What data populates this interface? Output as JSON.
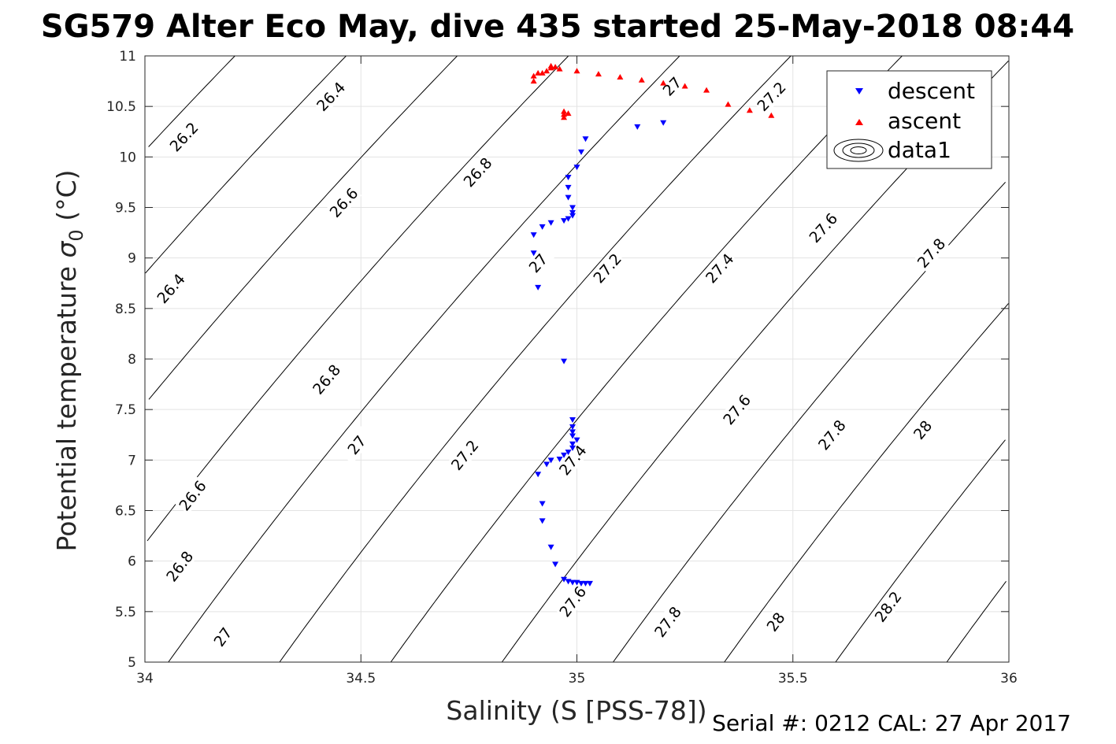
{
  "chart_data": {
    "type": "scatter",
    "title": "SG579 Alter Eco May, dive 435 started 25-May-2018 08:44",
    "xlabel": "Salinity (S [PSS-78])",
    "ylabel_main": "Potential temperature ",
    "ylabel_symbol": "σ",
    "ylabel_sub": "0",
    "ylabel_unit": " (°C)",
    "xlim": [
      34,
      36
    ],
    "ylim": [
      5,
      11
    ],
    "xticks": [
      34,
      34.5,
      35,
      35.5,
      36
    ],
    "xtick_labels": [
      "34",
      "34.5",
      "35",
      "35.5",
      "36"
    ],
    "yticks": [
      5,
      5.5,
      6,
      6.5,
      7,
      7.5,
      8,
      8.5,
      9,
      9.5,
      10,
      10.5,
      11
    ],
    "ytick_labels": [
      "5",
      "5.5",
      "6",
      "6.5",
      "7",
      "7.5",
      "8",
      "8.5",
      "9",
      "9.5",
      "10",
      "10.5",
      "11"
    ],
    "grid": true,
    "legend_position": "top-right",
    "legend": [
      "descent",
      "ascent",
      "data1"
    ],
    "footer": "Serial #: 0212  CAL: 27 Apr 2017",
    "contour_levels": [
      26.2,
      26.4,
      26.6,
      26.8,
      27,
      27.2,
      27.4,
      27.6,
      27.8,
      28,
      28.2
    ],
    "contour_labels": [
      {
        "text": "26.2",
        "s": 34.09,
        "t": 10.2
      },
      {
        "text": "26.4",
        "s": 34.43,
        "t": 10.6
      },
      {
        "text": "26.4",
        "s": 34.06,
        "t": 8.7
      },
      {
        "text": "26.6",
        "s": 34.46,
        "t": 9.55
      },
      {
        "text": "26.6",
        "s": 34.11,
        "t": 6.65
      },
      {
        "text": "26.8",
        "s": 34.77,
        "t": 9.85
      },
      {
        "text": "26.8",
        "s": 34.42,
        "t": 7.8
      },
      {
        "text": "26.8",
        "s": 34.08,
        "t": 5.95
      },
      {
        "text": "27",
        "s": 35.22,
        "t": 10.7
      },
      {
        "text": "27",
        "s": 34.91,
        "t": 8.95
      },
      {
        "text": "27",
        "s": 34.49,
        "t": 7.15
      },
      {
        "text": "27",
        "s": 34.18,
        "t": 5.25
      },
      {
        "text": "27.2",
        "s": 35.45,
        "t": 10.6
      },
      {
        "text": "27.2",
        "s": 35.07,
        "t": 8.9
      },
      {
        "text": "27.2",
        "s": 34.74,
        "t": 7.05
      },
      {
        "text": "27.4",
        "s": 35.33,
        "t": 8.9
      },
      {
        "text": "27.4",
        "s": 34.99,
        "t": 7.0
      },
      {
        "text": "27.6",
        "s": 35.57,
        "t": 9.3
      },
      {
        "text": "27.6",
        "s": 35.37,
        "t": 7.5
      },
      {
        "text": "27.6",
        "s": 34.99,
        "t": 5.6
      },
      {
        "text": "27.8",
        "s": 35.82,
        "t": 9.05
      },
      {
        "text": "27.8",
        "s": 35.59,
        "t": 7.25
      },
      {
        "text": "27.8",
        "s": 35.21,
        "t": 5.4
      },
      {
        "text": "28",
        "s": 35.8,
        "t": 7.3
      },
      {
        "text": "28",
        "s": 35.46,
        "t": 5.4
      },
      {
        "text": "28.2",
        "s": 35.72,
        "t": 5.55
      }
    ],
    "series": [
      {
        "name": "descent",
        "marker": "triangle-down",
        "color": "#0000ff",
        "points": [
          [
            35.02,
            10.18
          ],
          [
            35.01,
            10.05
          ],
          [
            35.0,
            9.9
          ],
          [
            34.98,
            9.8
          ],
          [
            34.98,
            9.7
          ],
          [
            34.98,
            9.6
          ],
          [
            34.99,
            9.5
          ],
          [
            34.99,
            9.45
          ],
          [
            34.99,
            9.42
          ],
          [
            34.98,
            9.39
          ],
          [
            34.97,
            9.37
          ],
          [
            34.94,
            9.35
          ],
          [
            34.92,
            9.31
          ],
          [
            34.9,
            9.23
          ],
          [
            34.9,
            9.05
          ],
          [
            34.91,
            8.71
          ],
          [
            34.97,
            7.98
          ],
          [
            34.99,
            7.4
          ],
          [
            34.99,
            7.33
          ],
          [
            34.99,
            7.28
          ],
          [
            34.99,
            7.24
          ],
          [
            35.0,
            7.2
          ],
          [
            34.99,
            7.16
          ],
          [
            34.99,
            7.12
          ],
          [
            34.98,
            7.08
          ],
          [
            34.97,
            7.05
          ],
          [
            34.96,
            7.01
          ],
          [
            34.94,
            7.0
          ],
          [
            34.93,
            6.96
          ],
          [
            34.91,
            6.86
          ],
          [
            34.92,
            6.57
          ],
          [
            34.92,
            6.4
          ],
          [
            34.94,
            6.14
          ],
          [
            34.95,
            5.97
          ],
          [
            34.97,
            5.82
          ],
          [
            34.98,
            5.8
          ],
          [
            34.99,
            5.79
          ],
          [
            35.0,
            5.79
          ],
          [
            35.01,
            5.78
          ],
          [
            35.02,
            5.78
          ],
          [
            35.03,
            5.78
          ],
          [
            35.14,
            10.3
          ],
          [
            35.2,
            10.34
          ]
        ]
      },
      {
        "name": "ascent",
        "marker": "triangle-up",
        "color": "#ff0000",
        "points": [
          [
            34.9,
            10.75
          ],
          [
            34.9,
            10.8
          ],
          [
            34.91,
            10.83
          ],
          [
            34.92,
            10.83
          ],
          [
            34.93,
            10.85
          ],
          [
            34.94,
            10.88
          ],
          [
            34.94,
            10.9
          ],
          [
            34.95,
            10.89
          ],
          [
            34.96,
            10.87
          ],
          [
            35.0,
            10.85
          ],
          [
            35.05,
            10.82
          ],
          [
            35.1,
            10.79
          ],
          [
            35.15,
            10.76
          ],
          [
            35.2,
            10.73
          ],
          [
            35.25,
            10.7
          ],
          [
            35.3,
            10.66
          ],
          [
            35.35,
            10.52
          ],
          [
            35.4,
            10.46
          ],
          [
            35.45,
            10.41
          ],
          [
            34.97,
            10.45
          ],
          [
            34.97,
            10.42
          ],
          [
            34.97,
            10.39
          ],
          [
            34.98,
            10.43
          ]
        ]
      }
    ]
  }
}
